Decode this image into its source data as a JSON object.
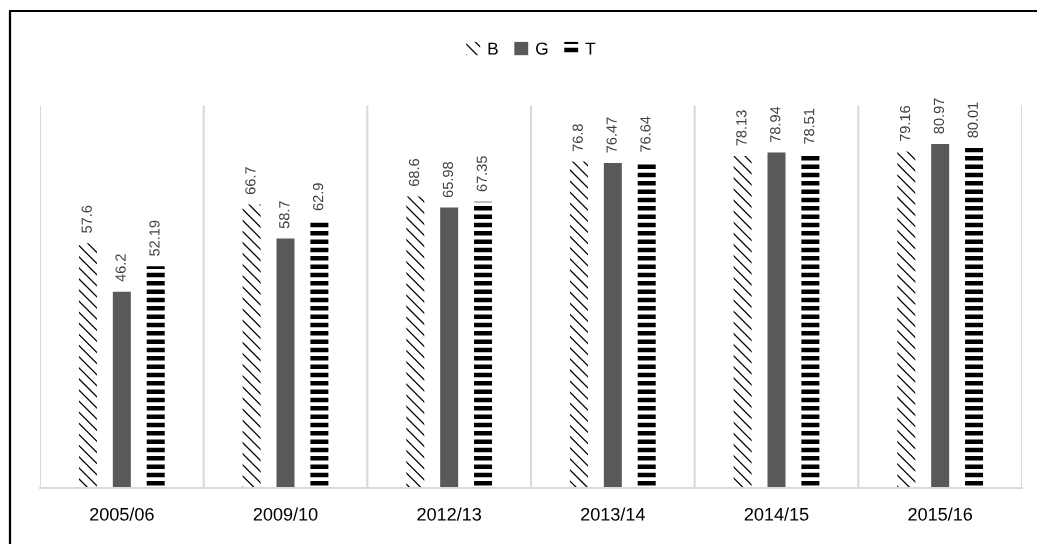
{
  "chart_data": {
    "type": "bar",
    "categories": [
      "2005/06",
      "2009/10",
      "2012/13",
      "2013/14",
      "2014/15",
      "2015/16"
    ],
    "series": [
      {
        "name": "B",
        "color": "#000000",
        "values": [
          57.6,
          66.7,
          68.6,
          76.8,
          78.13,
          79.16
        ]
      },
      {
        "name": "G",
        "color": "#595959",
        "values": [
          46.2,
          58.7,
          65.98,
          76.47,
          78.94,
          80.97
        ]
      },
      {
        "name": "T",
        "color": "#000000",
        "values": [
          52.19,
          62.9,
          67.35,
          76.64,
          78.51,
          80.01
        ]
      }
    ],
    "ylim": [
      0,
      90
    ],
    "data_labels": true,
    "grid": "x",
    "legend": "top",
    "tick_labels": "x"
  }
}
